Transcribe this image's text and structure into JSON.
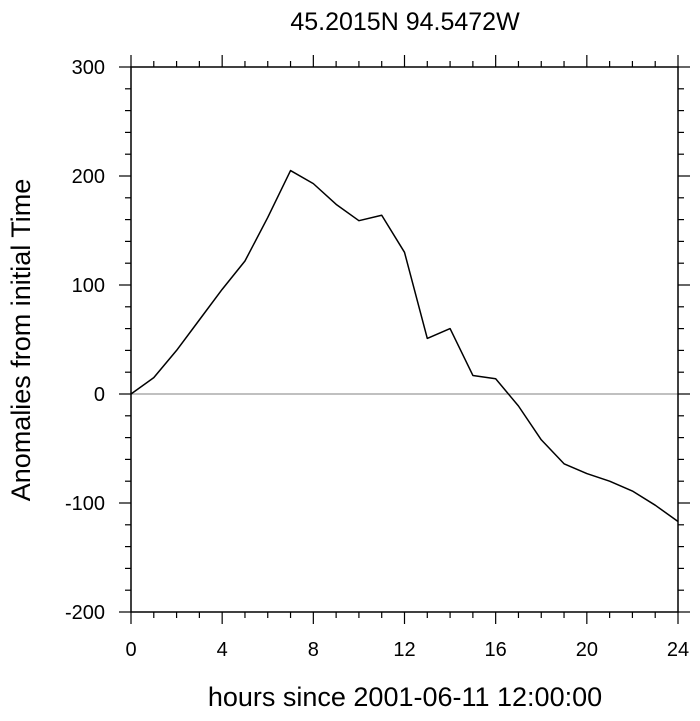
{
  "chart_data": {
    "type": "line",
    "title": "45.2015N  94.5472W",
    "xlabel": "hours since 2001-06-11 12:00:00",
    "ylabel": "Anomalies from initial Time",
    "xlim": [
      0,
      24
    ],
    "ylim": [
      -200,
      300
    ],
    "x_ticks": [
      0,
      4,
      8,
      12,
      16,
      20,
      24
    ],
    "y_ticks": [
      -200,
      -100,
      0,
      100,
      200,
      300
    ],
    "x_tick_labels": [
      "0",
      "4",
      "8",
      "12",
      "16",
      "20",
      "24"
    ],
    "y_tick_labels": [
      "-200",
      "-100",
      "0",
      "100",
      "200",
      "300"
    ],
    "reference_line": 0,
    "grid": false,
    "colors": {
      "series": "#000000",
      "reference": "#9a9a9a",
      "frame": "#000000"
    },
    "series": [
      {
        "x": [
          0,
          1,
          2,
          3,
          4,
          5,
          6,
          7,
          8,
          9,
          10,
          11,
          12,
          13,
          14,
          15,
          16,
          17,
          18,
          19,
          20,
          21,
          22,
          23,
          24
        ],
        "values": [
          0,
          15,
          40,
          68,
          96,
          122,
          162,
          205,
          193,
          174,
          159,
          164,
          130,
          51,
          60,
          17,
          14,
          -11,
          -42,
          -64,
          -73,
          -80,
          -89,
          -102,
          -117
        ]
      }
    ]
  }
}
